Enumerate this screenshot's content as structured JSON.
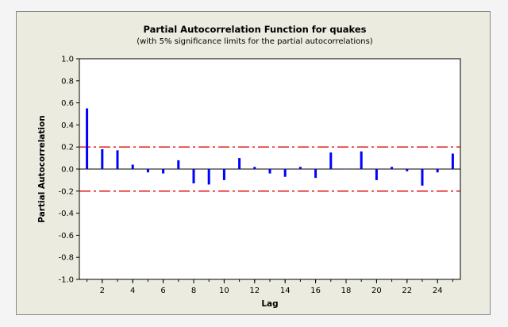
{
  "chart_data": {
    "type": "bar",
    "title": "Partial Autocorrelation Function for quakes",
    "subtitle": "(with 5% significance limits for the partial autocorrelations)",
    "xlabel": "Lag",
    "ylabel": "Partial Autocorrelation",
    "x": [
      1,
      2,
      3,
      4,
      5,
      6,
      7,
      8,
      9,
      10,
      11,
      12,
      13,
      14,
      15,
      16,
      17,
      18,
      19,
      20,
      21,
      22,
      23,
      24,
      25
    ],
    "values": [
      0.55,
      0.18,
      0.17,
      0.04,
      -0.03,
      -0.04,
      0.08,
      -0.13,
      -0.14,
      -0.1,
      0.1,
      0.02,
      -0.04,
      -0.07,
      0.02,
      -0.08,
      0.15,
      0.0,
      0.16,
      -0.1,
      0.02,
      -0.02,
      -0.15,
      -0.03,
      0.14
    ],
    "significance_limits": [
      0.2,
      -0.2
    ],
    "xlim": [
      0.5,
      25.5
    ],
    "ylim": [
      -1.0,
      1.0
    ],
    "xticks": [
      "2",
      "4",
      "6",
      "8",
      "10",
      "12",
      "14",
      "16",
      "18",
      "20",
      "22",
      "24"
    ],
    "xtick_values": [
      2,
      4,
      6,
      8,
      10,
      12,
      14,
      16,
      18,
      20,
      22,
      24
    ],
    "yticks": [
      "1.0",
      "0.8",
      "0.6",
      "0.4",
      "0.2",
      "0.0",
      "-0.2",
      "-0.4",
      "-0.6",
      "-0.8",
      "-1.0"
    ],
    "ytick_values": [
      1.0,
      0.8,
      0.6,
      0.4,
      0.2,
      0.0,
      -0.2,
      -0.4,
      -0.6,
      -0.8,
      -1.0
    ],
    "grid": false,
    "colors": {
      "bars": "#0000ff",
      "limits": "#e00000",
      "plot_background": "#ffffff",
      "frame_background": "#ecebe0"
    }
  }
}
